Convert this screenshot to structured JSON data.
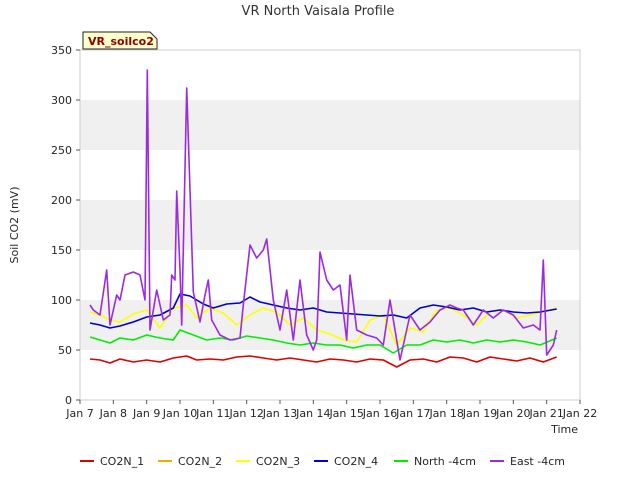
{
  "chart_data": {
    "type": "line",
    "title": "VR North Vaisala Profile",
    "badge": "VR_soilco2",
    "xlabel": "Time",
    "ylabel": "Soil CO2 (mV)",
    "xlim": [
      7,
      22
    ],
    "ylim": [
      0,
      350
    ],
    "x_tick_values": [
      7,
      8,
      9,
      10,
      11,
      12,
      13,
      14,
      15,
      16,
      17,
      18,
      19,
      20,
      21,
      22
    ],
    "x_tick_labels": [
      "Jan 7",
      "Jan 8",
      "Jan 9",
      "Jan 10",
      "Jan 11",
      "Jan 12",
      "Jan 13",
      "Jan 14",
      "Jan 15",
      "Jan 16",
      "Jan 17",
      "Jan 18",
      "Jan 19",
      "Jan 20",
      "Jan 21",
      "Jan 22"
    ],
    "y_ticks": [
      0,
      50,
      100,
      150,
      200,
      250,
      300,
      350
    ],
    "grid": "horizontal bands",
    "band_color": "#f0f0f0",
    "legend_position": "bottom",
    "series": [
      {
        "name": "CO2N_1",
        "color": "#dd0000",
        "x": [
          7.3,
          7.6,
          7.9,
          8.2,
          8.6,
          9.0,
          9.4,
          9.8,
          10.2,
          10.5,
          10.9,
          11.3,
          11.7,
          12.1,
          12.5,
          12.9,
          13.3,
          13.7,
          14.1,
          14.5,
          14.9,
          15.3,
          15.7,
          16.1,
          16.5,
          16.9,
          17.3,
          17.7,
          18.1,
          18.5,
          18.9,
          19.3,
          19.7,
          20.1,
          20.5,
          20.9,
          21.3
        ],
        "values": [
          41,
          40,
          37,
          41,
          38,
          40,
          38,
          42,
          44,
          40,
          41,
          40,
          43,
          44,
          42,
          40,
          42,
          40,
          38,
          41,
          40,
          38,
          41,
          40,
          33,
          40,
          41,
          38,
          43,
          42,
          38,
          43,
          41,
          39,
          42,
          38,
          43
        ]
      },
      {
        "name": "CO2N_2",
        "color": "#ffa500",
        "x": [],
        "values": []
      },
      {
        "name": "CO2N_3",
        "color": "#ffff00",
        "x": [
          7.3,
          7.6,
          7.9,
          8.2,
          8.6,
          9.0,
          9.4,
          9.8,
          10.2,
          10.5,
          10.9,
          11.3,
          11.7,
          12.1,
          12.5,
          12.9,
          13.3,
          13.7,
          14.1,
          14.5,
          14.9,
          15.3,
          15.7,
          16.1,
          16.5,
          16.9,
          17.3,
          17.7,
          18.1,
          18.5,
          18.9,
          19.3,
          19.7,
          20.1,
          20.5,
          20.9,
          21.3
        ],
        "values": [
          88,
          85,
          80,
          78,
          86,
          90,
          72,
          92,
          95,
          82,
          92,
          87,
          75,
          85,
          92,
          88,
          75,
          82,
          70,
          66,
          60,
          58,
          80,
          85,
          55,
          72,
          68,
          90,
          92,
          85,
          75,
          88,
          90,
          82,
          85,
          88,
          92
        ]
      },
      {
        "name": "CO2N_4",
        "color": "#0000cc",
        "x": [
          7.3,
          7.6,
          7.9,
          8.2,
          8.6,
          9.0,
          9.4,
          9.8,
          10.0,
          10.3,
          10.7,
          11.0,
          11.4,
          11.8,
          12.1,
          12.4,
          12.8,
          13.2,
          13.6,
          14.0,
          14.4,
          14.8,
          15.2,
          15.6,
          16.0,
          16.4,
          16.8,
          17.2,
          17.6,
          18.0,
          18.4,
          18.8,
          19.2,
          19.6,
          20.0,
          20.4,
          20.8,
          21.3
        ],
        "values": [
          77,
          75,
          72,
          74,
          78,
          83,
          85,
          92,
          106,
          104,
          96,
          92,
          96,
          97,
          103,
          98,
          95,
          92,
          90,
          92,
          88,
          87,
          86,
          85,
          84,
          85,
          82,
          92,
          95,
          93,
          90,
          92,
          88,
          90,
          88,
          87,
          88,
          91
        ]
      },
      {
        "name": "North -4cm",
        "color": "#00ee00",
        "x": [
          7.3,
          7.6,
          7.9,
          8.2,
          8.6,
          9.0,
          9.4,
          9.8,
          10.0,
          10.4,
          10.8,
          11.2,
          11.6,
          12.0,
          12.4,
          12.8,
          13.2,
          13.6,
          14.0,
          14.4,
          14.8,
          15.2,
          15.6,
          16.0,
          16.4,
          16.8,
          17.2,
          17.6,
          18.0,
          18.4,
          18.8,
          19.2,
          19.6,
          20.0,
          20.4,
          20.8,
          21.3
        ],
        "values": [
          63,
          60,
          57,
          62,
          60,
          65,
          62,
          60,
          70,
          65,
          60,
          62,
          60,
          64,
          62,
          60,
          57,
          55,
          57,
          55,
          55,
          52,
          55,
          55,
          47,
          55,
          55,
          60,
          58,
          60,
          57,
          60,
          58,
          60,
          58,
          55,
          62
        ]
      },
      {
        "name": "East -4cm",
        "color": "#9a2be2",
        "x": [
          7.3,
          7.4,
          7.6,
          7.8,
          7.9,
          8.1,
          8.2,
          8.35,
          8.6,
          8.8,
          8.95,
          9.02,
          9.1,
          9.3,
          9.5,
          9.7,
          9.75,
          9.85,
          9.9,
          10.0,
          10.05,
          10.2,
          10.4,
          10.6,
          10.75,
          10.85,
          10.95,
          11.2,
          11.5,
          11.8,
          11.9,
          12.1,
          12.3,
          12.5,
          12.6,
          12.8,
          13.0,
          13.2,
          13.4,
          13.6,
          13.8,
          14.0,
          14.1,
          14.2,
          14.4,
          14.6,
          14.8,
          15.0,
          15.1,
          15.3,
          15.6,
          15.9,
          16.1,
          16.3,
          16.6,
          16.9,
          17.2,
          17.5,
          17.8,
          18.1,
          18.3,
          18.5,
          18.8,
          19.1,
          19.4,
          19.7,
          20.0,
          20.3,
          20.6,
          20.8,
          20.9,
          21.0,
          21.2,
          21.3
        ],
        "values": [
          95,
          90,
          85,
          130,
          75,
          105,
          100,
          125,
          128,
          125,
          100,
          330,
          70,
          110,
          80,
          85,
          125,
          120,
          209,
          130,
          75,
          312,
          108,
          78,
          105,
          120,
          80,
          65,
          60,
          62,
          95,
          155,
          142,
          150,
          161,
          100,
          70,
          110,
          60,
          120,
          65,
          50,
          60,
          148,
          120,
          110,
          115,
          60,
          125,
          70,
          65,
          62,
          55,
          100,
          40,
          85,
          70,
          78,
          90,
          95,
          92,
          90,
          75,
          90,
          82,
          90,
          85,
          72,
          75,
          70,
          140,
          45,
          55,
          70
        ]
      }
    ]
  }
}
